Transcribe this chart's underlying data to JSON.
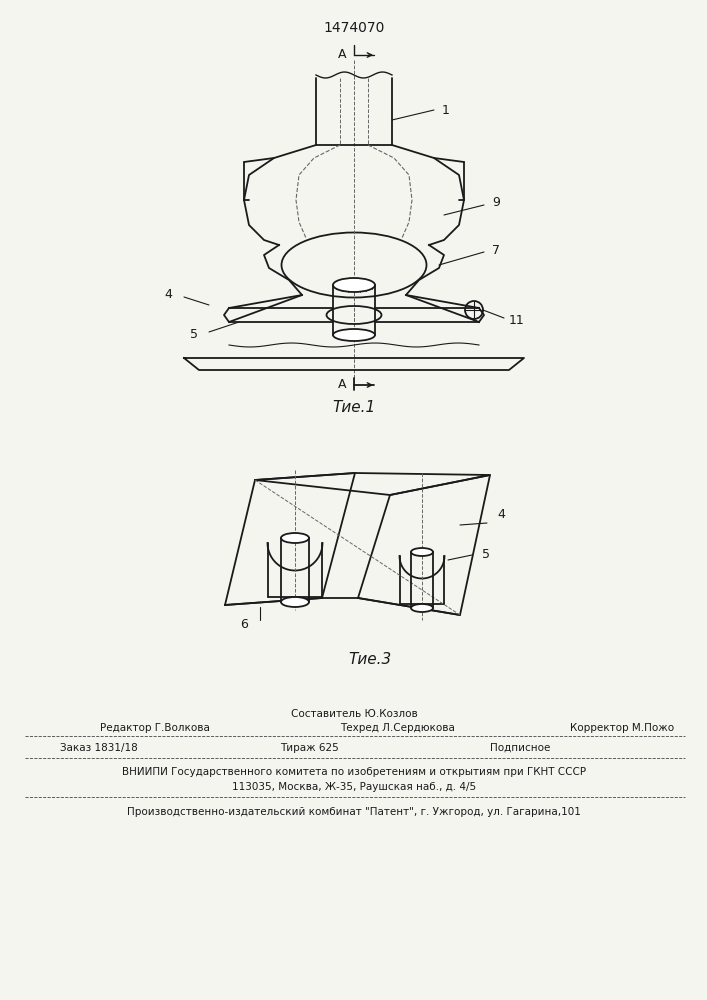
{
  "patent_number": "1474070",
  "fig1_caption": "Τие.1",
  "fig3_caption": "Τие.3",
  "text_block": {
    "sostavitel": "Составитель Ю.Козлов",
    "redaktor": "Редактор Г.Волкова",
    "tehred": "Техред Л.Сердюкова",
    "korrektor": "Корректор М.Пожо",
    "zakaz": "Заказ 1831/18",
    "tirazh": "Тираж 625",
    "podpisnoe": "Подписное",
    "vniip1": "ВНИИПИ Государственного комитета по изобретениям и открытиям при ГКНТ СССР",
    "vniip2": "113035, Москва, Ж-35, Раушская наб., д. 4/5",
    "proizv": "Производственно-издательский комбинат \"Патент\", г. Ужгород, ул. Гагарина,101"
  },
  "bg_color": "#f5f5f0",
  "line_color": "#1a1a1a",
  "dashed_color": "#666666"
}
